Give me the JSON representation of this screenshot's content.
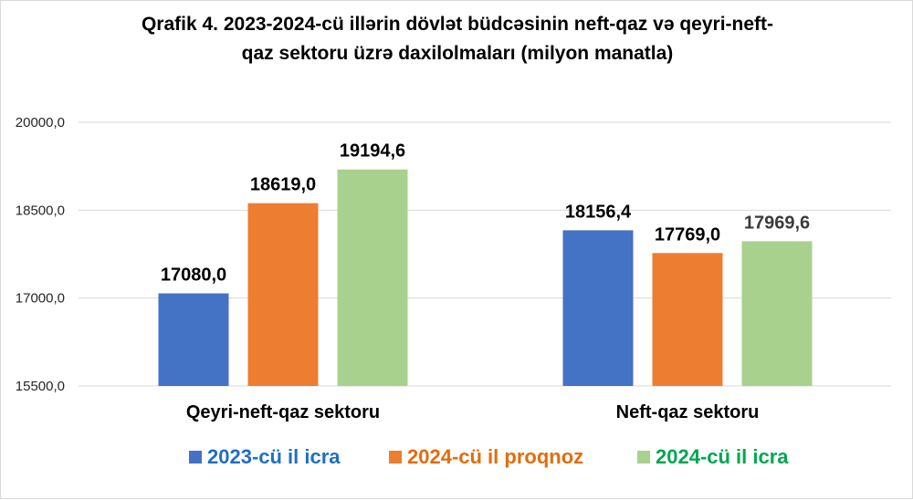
{
  "chart_data": {
    "type": "bar",
    "title_lines": [
      "Qrafik 4. 2023-2024-cü illərin dövlət büdcəsinin neft-qaz və qeyri-neft-",
      "qaz sektoru üzrə daxilolmaları (milyon manatla)"
    ],
    "categories": [
      "Qeyri-neft-qaz sektoru",
      "Neft-qaz sektoru"
    ],
    "series": [
      {
        "name": "2023-cü il icra",
        "color": "#4472C4",
        "label_color": "#1F70C1",
        "values": [
          17080.0,
          18156.4
        ],
        "value_labels": [
          "17080,0",
          "18156,4"
        ]
      },
      {
        "name": "2024-cü il proqnoz",
        "color": "#ED7D31",
        "label_color": "#E46C0A",
        "values": [
          18619.0,
          17769.0
        ],
        "value_labels": [
          "18619,0",
          "17769,0"
        ]
      },
      {
        "name": "2024-cü il icra",
        "color": "#A9D18E",
        "label_color": "#00A651",
        "values": [
          19194.6,
          17969.6
        ],
        "value_labels": [
          "19194,6",
          "17969,6"
        ]
      }
    ],
    "ylim": [
      15500,
      20000
    ],
    "yticks": [
      15500,
      17000,
      18500,
      20000
    ],
    "ytick_labels": [
      "15500,0",
      "17000,0",
      "18500,0",
      "20000,0"
    ],
    "xlabel": "",
    "ylabel": "",
    "grid": true,
    "legend_position": "bottom"
  }
}
